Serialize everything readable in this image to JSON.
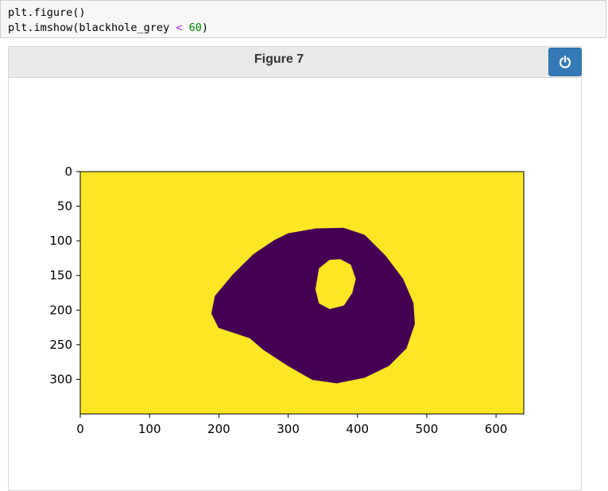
{
  "code": {
    "line1": "plt.figure()",
    "line2_prefix": "plt.imshow(blackhole_grey ",
    "line2_op": "<",
    "line2_space": " ",
    "line2_num": "60",
    "line2_suffix": ")"
  },
  "figure": {
    "title": "Figure 7",
    "power_icon": "power-icon"
  },
  "colors": {
    "background": "#fde725",
    "foreground": "#440154",
    "button": "#337ab7"
  },
  "chart_data": {
    "type": "heatmap",
    "description_colormap": "viridis",
    "xlim": [
      0,
      640
    ],
    "ylim": [
      350,
      0
    ],
    "xticks": [
      0,
      100,
      200,
      300,
      400,
      500,
      600
    ],
    "yticks": [
      0,
      50,
      100,
      150,
      200,
      250,
      300
    ],
    "outer_blob": [
      [
        300,
        90
      ],
      [
        340,
        83
      ],
      [
        380,
        82
      ],
      [
        410,
        92
      ],
      [
        440,
        122
      ],
      [
        465,
        155
      ],
      [
        480,
        190
      ],
      [
        482,
        220
      ],
      [
        470,
        255
      ],
      [
        445,
        280
      ],
      [
        410,
        297
      ],
      [
        370,
        305
      ],
      [
        335,
        300
      ],
      [
        300,
        280
      ],
      [
        265,
        257
      ],
      [
        245,
        240
      ],
      [
        200,
        225
      ],
      [
        190,
        205
      ],
      [
        195,
        180
      ],
      [
        220,
        150
      ],
      [
        250,
        120
      ],
      [
        280,
        100
      ]
    ],
    "inner_hole": [
      [
        345,
        140
      ],
      [
        360,
        128
      ],
      [
        375,
        127
      ],
      [
        390,
        135
      ],
      [
        397,
        155
      ],
      [
        392,
        175
      ],
      [
        380,
        193
      ],
      [
        360,
        198
      ],
      [
        345,
        190
      ],
      [
        340,
        170
      ]
    ]
  }
}
